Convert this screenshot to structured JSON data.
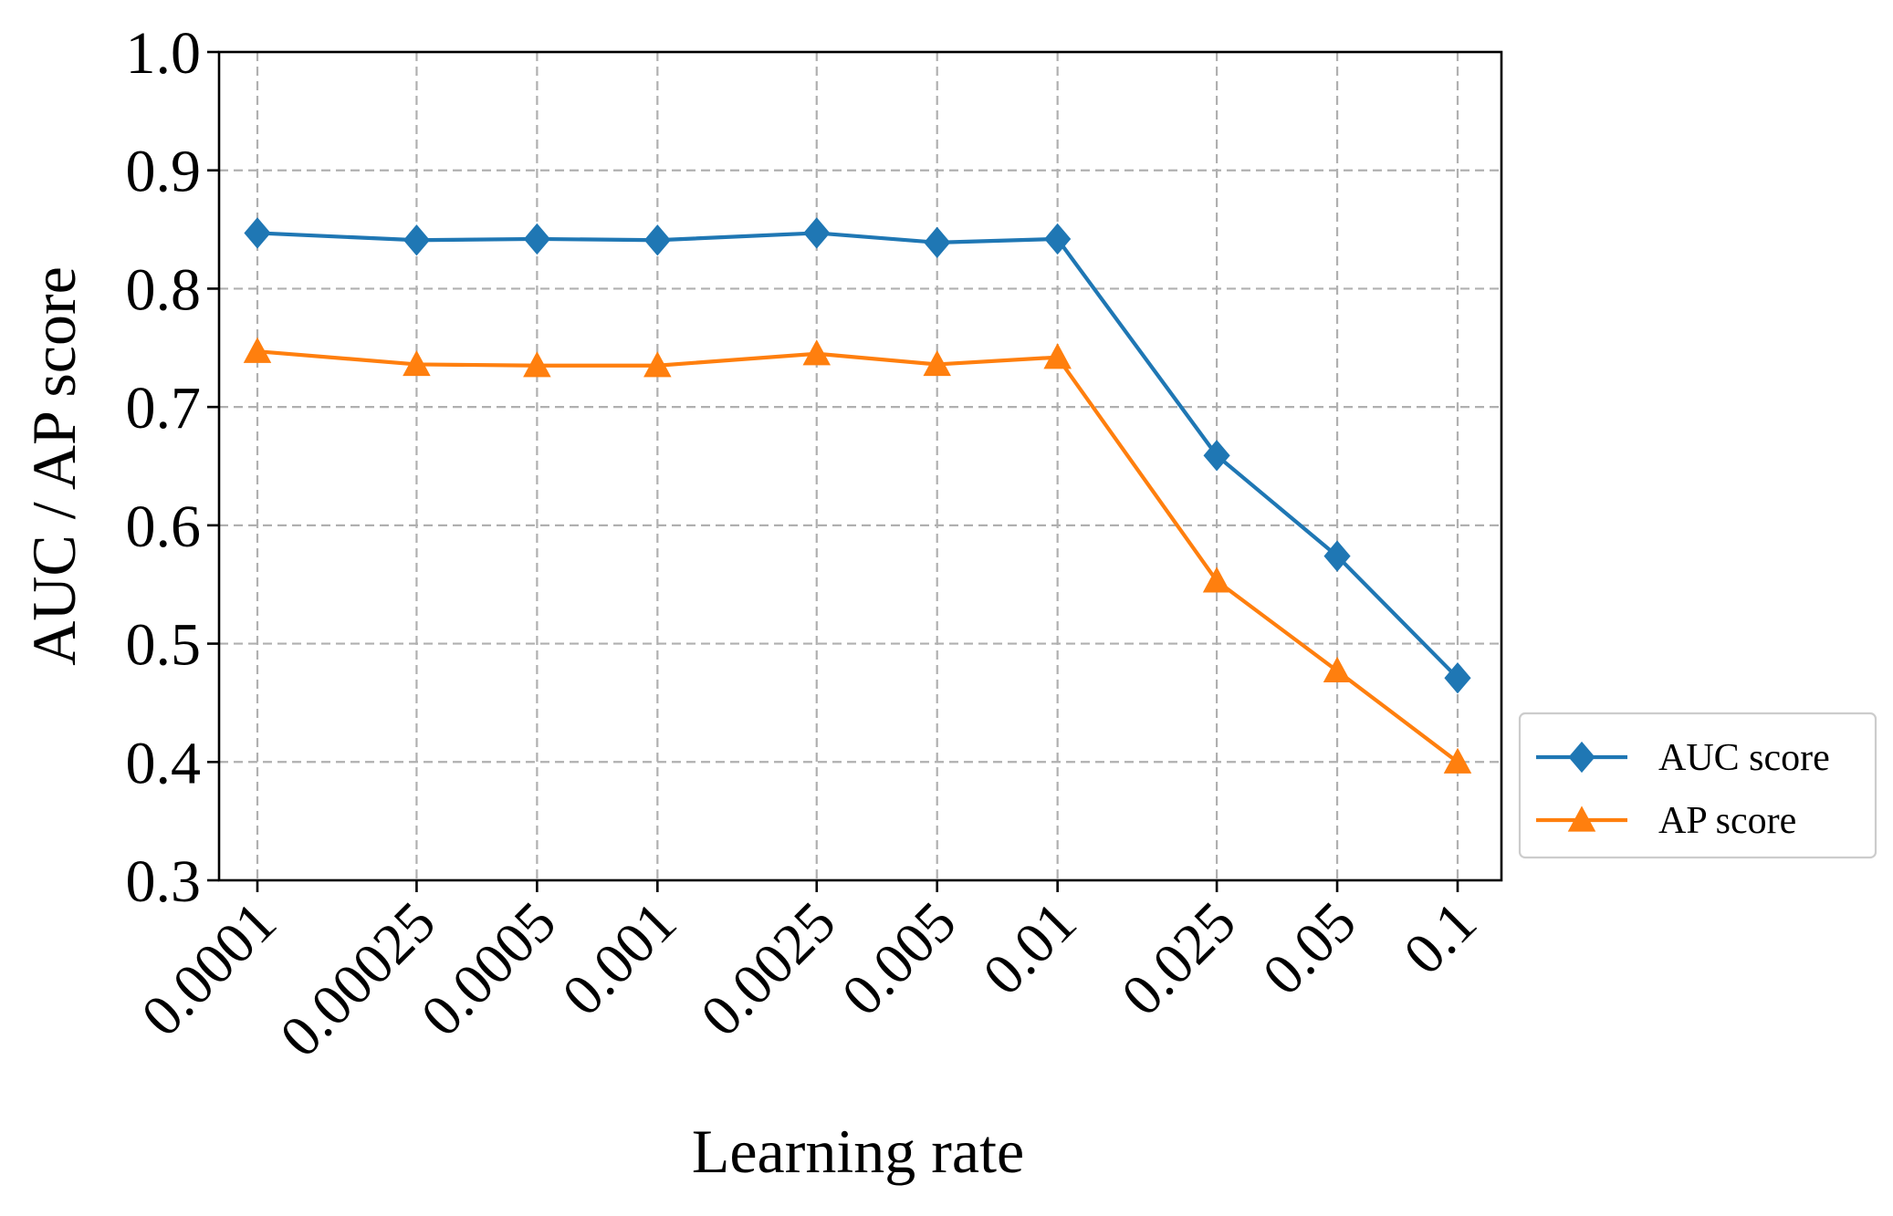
{
  "chart_data": {
    "type": "line",
    "xlabel": "Learning rate",
    "ylabel": "AUC / AP score",
    "categories": [
      "0.0001",
      "0.00025",
      "0.0005",
      "0.001",
      "0.0025",
      "0.005",
      "0.01",
      "0.025",
      "0.05",
      "0.1"
    ],
    "x_scale": "log",
    "x_values": [
      0.0001,
      0.00025,
      0.0005,
      0.001,
      0.0025,
      0.005,
      0.01,
      0.025,
      0.05,
      0.1
    ],
    "ylim": [
      0.3,
      1.0
    ],
    "yticks": [
      "0.3",
      "0.4",
      "0.5",
      "0.6",
      "0.7",
      "0.8",
      "0.9",
      "1.0"
    ],
    "grid": true,
    "legend_position": "outside right, bottom",
    "series": [
      {
        "name": "AUC score",
        "marker": "diamond",
        "color": "#1f77b4",
        "values": [
          0.847,
          0.841,
          0.842,
          0.841,
          0.847,
          0.839,
          0.842,
          0.659,
          0.574,
          0.471
        ]
      },
      {
        "name": "AP score",
        "marker": "triangle",
        "color": "#ff7f0e",
        "values": [
          0.747,
          0.736,
          0.735,
          0.735,
          0.745,
          0.736,
          0.742,
          0.553,
          0.477,
          0.4
        ]
      }
    ]
  }
}
